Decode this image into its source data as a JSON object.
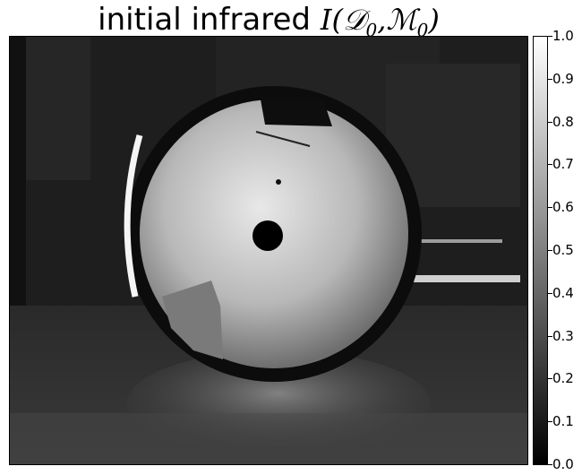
{
  "title": {
    "text": "initial infrared",
    "math_main": "I(𝒟",
    "sub1": "0",
    "math_mid": ",ℳ",
    "sub2": "0",
    "math_end": ")"
  },
  "colorbar": {
    "ticks": [
      "1.0",
      "0.9",
      "0.8",
      "0.7",
      "0.6",
      "0.5",
      "0.4",
      "0.3",
      "0.2",
      "0.1",
      "0.0"
    ],
    "colormap": "grayscale",
    "min": 0.0,
    "max": 1.0
  },
  "image": {
    "subject": "bright sphere with dark center spot on grayscale infrared scene",
    "colors": {
      "background": "#1c1c1c",
      "sphere_light": "#e0e0e0",
      "sphere_mid": "#9a9a9a",
      "rim": "#0a0a0a"
    }
  }
}
